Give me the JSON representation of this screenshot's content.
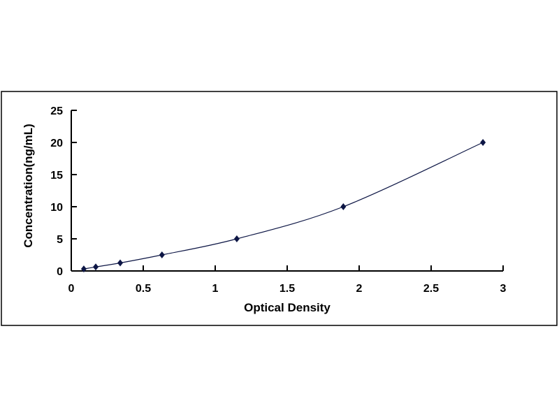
{
  "chart_data": {
    "type": "scatter",
    "title": "",
    "xlabel": "Optical Density",
    "ylabel": "Concentration(ng/mL)",
    "xlim": [
      0,
      3
    ],
    "ylim": [
      0,
      25
    ],
    "xticks": [
      "0",
      "0.5",
      "1",
      "1.5",
      "2",
      "2.5",
      "3"
    ],
    "yticks": [
      "0",
      "5",
      "10",
      "15",
      "20",
      "25"
    ],
    "grid": false,
    "legend": "none",
    "trendline": "smooth curve through points",
    "marker": "diamond",
    "color": "#0d1645",
    "x": [
      0.087,
      0.17,
      0.34,
      0.63,
      1.15,
      1.89,
      2.86
    ],
    "y": [
      0.31,
      0.63,
      1.25,
      2.5,
      5,
      10,
      20
    ]
  }
}
